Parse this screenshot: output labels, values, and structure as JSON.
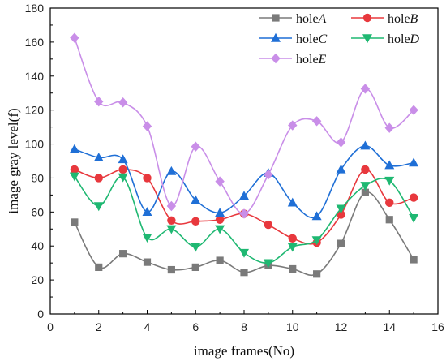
{
  "chart_data": {
    "type": "line",
    "title": "",
    "xlabel": "image frames(No)",
    "ylabel": "image gray level(f)",
    "xlim": [
      0,
      16
    ],
    "ylim": [
      0,
      180
    ],
    "xticks": [
      0,
      2,
      4,
      6,
      8,
      10,
      12,
      14,
      16
    ],
    "yticks": [
      0,
      20,
      40,
      60,
      80,
      100,
      120,
      140,
      160,
      180
    ],
    "grid": false,
    "legend_position": "top-right",
    "x": [
      1,
      2,
      3,
      4,
      5,
      6,
      7,
      8,
      9,
      10,
      11,
      12,
      13,
      14,
      15
    ],
    "series": [
      {
        "name": "holeA",
        "legend_prefix": "hole",
        "legend_suffix": "A",
        "color": "#7a7a7a",
        "marker": "square",
        "values": [
          54,
          27.5,
          35.5,
          30.5,
          26,
          27.5,
          31.5,
          24.5,
          28.5,
          26.5,
          23.5,
          41.5,
          71.5,
          55.5,
          32
        ]
      },
      {
        "name": "holeB",
        "legend_prefix": "hole",
        "legend_suffix": "B",
        "color": "#e8383d",
        "marker": "circle",
        "values": [
          85,
          80,
          85,
          80,
          55,
          54.5,
          55.5,
          59,
          52.5,
          44.5,
          42,
          58.5,
          85,
          65.5,
          68.5
        ]
      },
      {
        "name": "holeC",
        "legend_prefix": "hole",
        "legend_suffix": "C",
        "color": "#1f6fd6",
        "marker": "triangle-up",
        "values": [
          97,
          92,
          91,
          60,
          84,
          67,
          59.5,
          69.5,
          83,
          65.5,
          57.5,
          85,
          99,
          87.5,
          89
        ]
      },
      {
        "name": "holeD",
        "legend_prefix": "hole",
        "legend_suffix": "D",
        "color": "#1fb872",
        "marker": "triangle-down",
        "values": [
          81,
          63.5,
          80.5,
          45,
          50,
          39.5,
          50,
          36,
          30,
          39.5,
          43.5,
          62,
          75.5,
          78.5,
          56.5
        ]
      },
      {
        "name": "holeE",
        "legend_prefix": "hole",
        "legend_suffix": "E",
        "color": "#c98ee8",
        "marker": "diamond",
        "values": [
          162.5,
          125,
          124.5,
          110.5,
          63.5,
          98.5,
          78,
          59,
          82,
          111,
          113.5,
          101,
          132.5,
          109.5,
          120
        ]
      }
    ]
  }
}
